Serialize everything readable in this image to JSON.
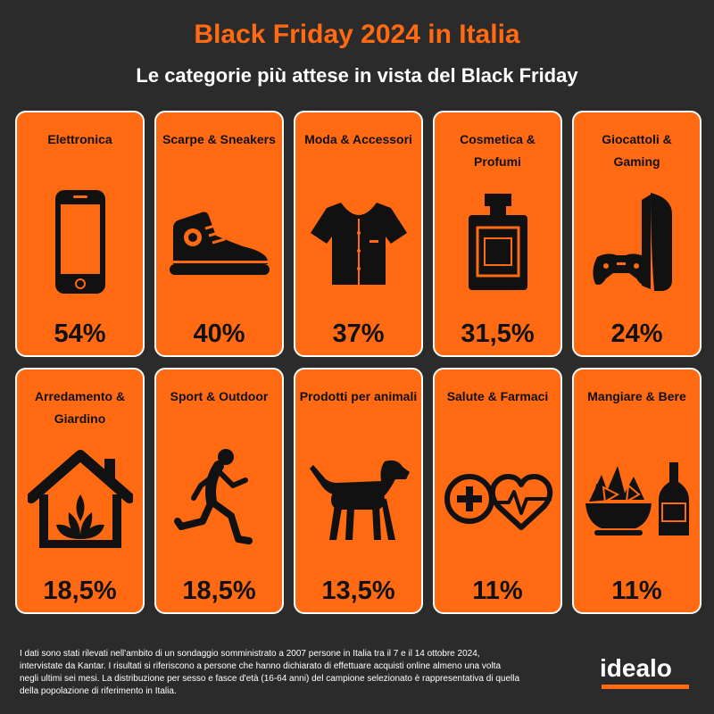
{
  "header": {
    "title": "Black Friday 2024 in Italia",
    "subtitle": "Le categorie più attese in vista del Black Friday"
  },
  "chart_data": {
    "type": "table",
    "title": "Black Friday 2024 in Italia",
    "subtitle": "Le categorie più attese in vista del Black Friday",
    "categories": [
      "Elettronica",
      "Scarpe & Sneakers",
      "Moda & Accessori",
      "Cosmetica & Profumi",
      "Giocattoli & Gaming",
      "Arredamento & Giardino",
      "Sport & Outdoor",
      "Prodotti per animali",
      "Salute & Farmaci",
      "Mangiare & Bere"
    ],
    "values": [
      54,
      40,
      37,
      31.5,
      24,
      18.5,
      18.5,
      13.5,
      11,
      11
    ],
    "value_labels": [
      "54%",
      "40%",
      "37%",
      "31,5%",
      "24%",
      "18,5%",
      "18,5%",
      "13,5%",
      "11%",
      "11%"
    ],
    "icons": [
      "smartphone-icon",
      "sneaker-icon",
      "shirt-icon",
      "perfume-icon",
      "game-console-icon",
      "house-plant-icon",
      "runner-icon",
      "dog-icon",
      "health-cross-heart-icon",
      "food-wine-icon"
    ]
  },
  "colors": {
    "background": "#2b2b2b",
    "accent": "#ff6a13",
    "card_border": "#ffffff",
    "text_dark": "#111111"
  },
  "footer": {
    "note": "I dati sono stati rilevati nell'ambito di un sondaggio somministrato a 2007 persone in Italia tra il 7 e il 14 ottobre 2024, intervistate da Kantar. I risultati si riferiscono a persone che hanno dichiarato di effettuare acquisti online almeno una volta negli ultimi sei mesi. La distribuzione per sesso e fasce d'età (16-64 anni) del campione selezionato è rappresentativa di quella della popolazione di riferimento in Italia.",
    "logo": "idealo"
  }
}
